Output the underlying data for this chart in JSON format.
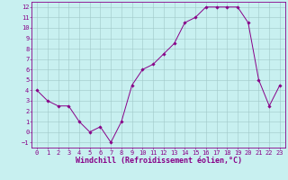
{
  "x": [
    0,
    1,
    2,
    3,
    4,
    5,
    6,
    7,
    8,
    9,
    10,
    11,
    12,
    13,
    14,
    15,
    16,
    17,
    18,
    19,
    20,
    21,
    22,
    23
  ],
  "y": [
    4,
    3,
    2.5,
    2.5,
    1,
    0,
    0.5,
    -1,
    1,
    4.5,
    6,
    6.5,
    7.5,
    8.5,
    10.5,
    11,
    12,
    12,
    12,
    12,
    10.5,
    5,
    2.5,
    4.5
  ],
  "line_color": "#880088",
  "marker": "D",
  "marker_size": 1.8,
  "bg_color": "#c8f0f0",
  "grid_color": "#a0c8c8",
  "axis_color": "#880088",
  "tick_color": "#880088",
  "xlabel": "Windchill (Refroidissement éolien,°C)",
  "xlim": [
    -0.5,
    23.5
  ],
  "ylim": [
    -1.5,
    12.5
  ],
  "yticks": [
    -1,
    0,
    1,
    2,
    3,
    4,
    5,
    6,
    7,
    8,
    9,
    10,
    11,
    12
  ],
  "xticks": [
    0,
    1,
    2,
    3,
    4,
    5,
    6,
    7,
    8,
    9,
    10,
    11,
    12,
    13,
    14,
    15,
    16,
    17,
    18,
    19,
    20,
    21,
    22,
    23
  ],
  "tick_fontsize": 5.0,
  "xlabel_fontsize": 6.0,
  "spine_color": "#880088",
  "linewidth": 0.7
}
